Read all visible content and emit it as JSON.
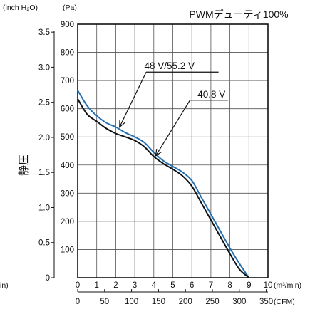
{
  "chart_data": {
    "type": "line",
    "title": "PWMデューティ100%",
    "ylabel": "静圧",
    "y_unit_pa": "(Pa)",
    "y_unit_inch": "(inch H₂O)",
    "x_unit_m3": "(m³/min)",
    "x_unit_cfm": "(CFM)",
    "cut_label": "in)",
    "x_m3_ticks": [
      "0",
      "1",
      "2",
      "3",
      "4",
      "5",
      "6",
      "7",
      "8",
      "9",
      "10"
    ],
    "x_cfm_ticks": [
      "0",
      "50",
      "100",
      "150",
      "200",
      "250",
      "300",
      "350"
    ],
    "y_pa_ticks": [
      "900",
      "800",
      "700",
      "600",
      "500",
      "400",
      "300",
      "200",
      "100"
    ],
    "y_inch_ticks": [
      "3.5",
      "3.0",
      "2.5",
      "2.0",
      "1.5",
      "1.0",
      "0.5",
      "0"
    ],
    "xlim": [
      0,
      10
    ],
    "ylim": [
      0,
      900
    ],
    "grid": true,
    "series": [
      {
        "name": "48 V/55.2 V",
        "color": "#1f6fb5",
        "x": [
          0,
          0.5,
          1,
          1.5,
          2,
          2.5,
          3,
          3.5,
          4,
          4.5,
          5,
          5.5,
          6,
          6.5,
          7,
          7.5,
          8,
          8.5,
          9
        ],
        "values": [
          665,
          610,
          575,
          550,
          535,
          515,
          500,
          480,
          445,
          415,
          395,
          375,
          345,
          285,
          225,
          165,
          105,
          50,
          0
        ]
      },
      {
        "name": "40.8 V",
        "color": "#111111",
        "x": [
          0,
          0.5,
          1,
          1.5,
          2,
          2.5,
          3,
          3.5,
          4,
          4.5,
          5,
          5.5,
          6,
          6.5,
          7,
          7.5,
          8,
          8.5,
          9
        ],
        "values": [
          635,
          580,
          555,
          530,
          512,
          500,
          487,
          465,
          430,
          405,
          385,
          362,
          325,
          265,
          205,
          145,
          85,
          30,
          0
        ]
      }
    ],
    "annotations": [
      {
        "text": "48 V/55.2 V",
        "series": 0
      },
      {
        "text": "40.8 V",
        "series": 1
      }
    ]
  }
}
